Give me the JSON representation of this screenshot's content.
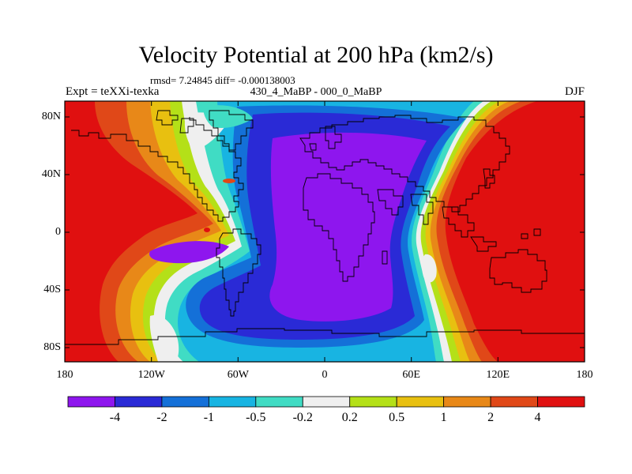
{
  "title": "Velocity Potential at 200 hPa (km2/s)",
  "stats": "rmsd= 7.24845 diff= -0.000138003",
  "experiment": "Expt = teXXi-texka",
  "period": "430_4_MaBP - 000_0_MaBP",
  "season": "DJF",
  "lon_ticks": [
    "180",
    "120W",
    "60W",
    "0",
    "60E",
    "120E",
    "180"
  ],
  "lat_ticks": [
    "80N",
    "40N",
    "0",
    "40S",
    "80S"
  ],
  "colorbar": {
    "colors": [
      "#8e16ee",
      "#2a2ad6",
      "#1470d8",
      "#18b4e2",
      "#40dcc4",
      "#efefef",
      "#b4e018",
      "#e8c010",
      "#e88818",
      "#e04818",
      "#e01010"
    ],
    "labels": [
      "-4",
      "-2",
      "-1",
      "-0.5",
      "-0.2",
      "0.2",
      "0.5",
      "1",
      "2",
      "4"
    ]
  }
}
